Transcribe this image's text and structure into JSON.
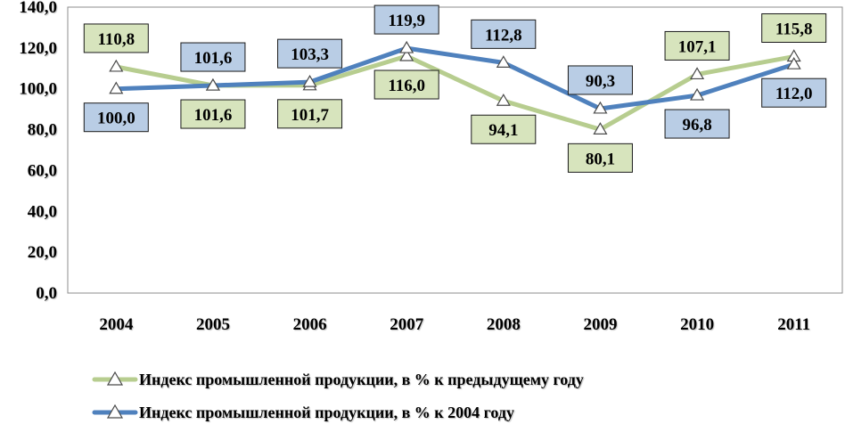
{
  "chart_data": {
    "type": "line",
    "categories": [
      "2004",
      "2005",
      "2006",
      "2007",
      "2008",
      "2009",
      "2010",
      "2011"
    ],
    "ylim": [
      0,
      140
    ],
    "yticks": [
      0,
      20,
      40,
      60,
      80,
      100,
      120,
      140
    ],
    "ytick_labels": [
      "0,0",
      "20,0",
      "40,0",
      "60,0",
      "80,0",
      "100,0",
      "120,0",
      "140,0"
    ],
    "grid": false,
    "legend_position": "bottom",
    "series": [
      {
        "name": "Индекс промышленной продукции, в % к предыдущему году",
        "color": "#b7cd8f",
        "label_fill": "#d7e4bd",
        "values": [
          110.8,
          101.6,
          101.7,
          116.0,
          94.1,
          80.1,
          107.1,
          115.8
        ],
        "labels": [
          "110,8",
          "101,6",
          "101,7",
          "116,0",
          "94,1",
          "80,1",
          "107,1",
          "115,8"
        ],
        "marker": "triangle"
      },
      {
        "name": "Индекс промышленной продукции, в % к 2004 году",
        "color": "#4f81bd",
        "label_fill": "#b9cde5",
        "values": [
          100.0,
          101.6,
          103.3,
          119.9,
          112.8,
          90.3,
          96.8,
          112.0
        ],
        "labels": [
          "100,0",
          "101,6",
          "103,3",
          "119,9",
          "112,8",
          "90,3",
          "96,8",
          "112,0"
        ],
        "marker": "triangle"
      }
    ]
  }
}
